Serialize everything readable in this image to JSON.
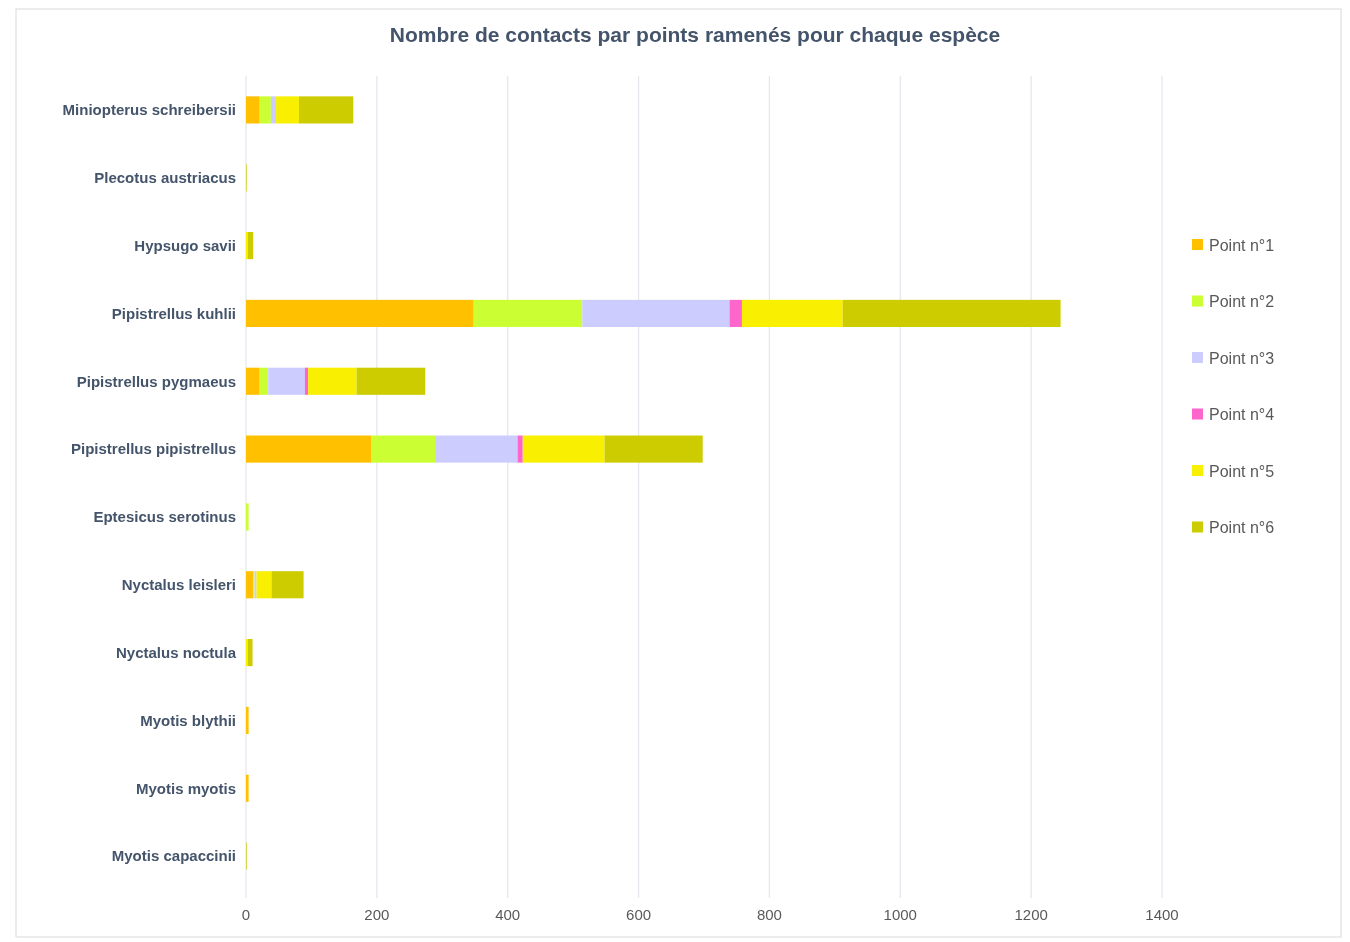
{
  "chart_data": {
    "type": "bar",
    "orientation": "horizontal",
    "stacked": true,
    "title": "Nombre de contacts par points ramenés pour chaque espèce",
    "categories": [
      "Miniopterus schreibersii",
      "Plecotus austriacus",
      "Hypsugo savii",
      "Pipistrellus kuhlii",
      "Pipistrellus pygmaeus",
      "Pipistrellus pipistrellus",
      "Eptesicus serotinus",
      "Nyctalus leisleri",
      "Nyctalus noctula",
      "Myotis blythii",
      "Myotis myotis",
      "Myotis capaccinii"
    ],
    "series": [
      {
        "name": "Point n°1",
        "color": "#ffc000",
        "values": [
          21,
          0,
          0,
          348,
          21,
          192,
          0,
          11,
          0,
          4,
          4,
          0
        ]
      },
      {
        "name": "Point n°2",
        "color": "#ccff33",
        "values": [
          17,
          0,
          0,
          166,
          13,
          97,
          4,
          2,
          0,
          0,
          0,
          0
        ]
      },
      {
        "name": "Point n°3",
        "color": "#ccccff",
        "values": [
          8,
          0,
          0,
          225,
          56,
          126,
          0,
          3,
          0,
          0,
          0,
          0
        ]
      },
      {
        "name": "Point n°4",
        "color": "#ff66cc",
        "values": [
          0,
          0,
          0,
          19,
          5,
          8,
          0,
          0,
          0,
          0,
          0,
          0
        ]
      },
      {
        "name": "Point n°5",
        "color": "#f8f000",
        "values": [
          35,
          0,
          3,
          154,
          74,
          125,
          0,
          23,
          3,
          0,
          0,
          0
        ]
      },
      {
        "name": "Point n°6",
        "color": "#cccc00",
        "values": [
          83,
          1,
          8,
          333,
          105,
          150,
          0,
          49,
          7,
          0,
          0,
          1
        ]
      }
    ],
    "xlim": [
      0,
      1400
    ],
    "xticks": [
      0,
      200,
      400,
      600,
      800,
      1000,
      1200,
      1400
    ],
    "grid": "x",
    "legend": "right"
  }
}
